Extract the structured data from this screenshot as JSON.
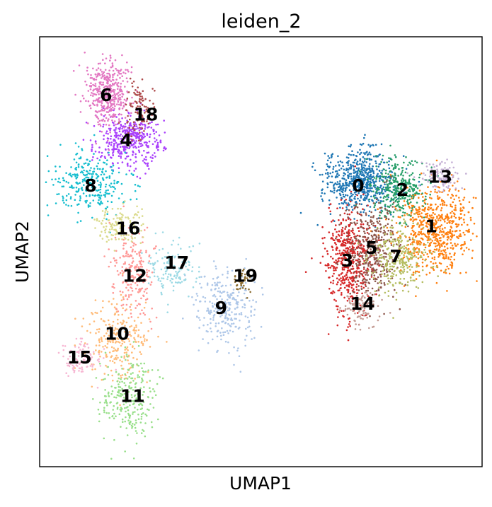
{
  "chart_data": {
    "type": "scatter",
    "title": "leiden_2",
    "xlabel": "UMAP1",
    "ylabel": "UMAP2",
    "xlim": [
      0,
      100
    ],
    "ylim": [
      0,
      100
    ],
    "grid": false,
    "legend": "on data",
    "ticks": "none",
    "clusters": [
      {
        "label": "0",
        "color": "#1f77b4",
        "x": 72.5,
        "y": 66.5,
        "sx": 4.0,
        "sy": 3.6,
        "n": 620
      },
      {
        "label": "1",
        "color": "#ff7f0e",
        "x": 89.5,
        "y": 55.0,
        "sx": 4.2,
        "sy": 5.2,
        "n": 650
      },
      {
        "label": "2",
        "color": "#279e68",
        "x": 81.0,
        "y": 65.0,
        "sx": 3.0,
        "sy": 3.4,
        "n": 330
      },
      {
        "label": "3",
        "color": "#d62728",
        "x": 70.0,
        "y": 48.0,
        "sx": 2.5,
        "sy": 6.2,
        "n": 520
      },
      {
        "label": "4",
        "color": "#aa40fc",
        "x": 20.0,
        "y": 76.0,
        "sx": 3.6,
        "sy": 3.0,
        "n": 430
      },
      {
        "label": "5",
        "color": "#8c564b",
        "x": 75.0,
        "y": 49.5,
        "sx": 2.8,
        "sy": 5.4,
        "n": 380
      },
      {
        "label": "6",
        "color": "#e377c2",
        "x": 15.5,
        "y": 86.5,
        "sx": 2.4,
        "sy": 4.0,
        "n": 400
      },
      {
        "label": "7",
        "color": "#b5bd61",
        "x": 81.0,
        "y": 48.5,
        "sx": 3.2,
        "sy": 4.2,
        "n": 280
      },
      {
        "label": "8",
        "color": "#17becf",
        "x": 11.0,
        "y": 66.0,
        "sx": 4.4,
        "sy": 3.4,
        "n": 300
      },
      {
        "label": "9",
        "color": "#aec7e8",
        "x": 42.0,
        "y": 37.0,
        "sx": 3.4,
        "sy": 4.8,
        "n": 280
      },
      {
        "label": "10",
        "color": "#ffbb78",
        "x": 18.0,
        "y": 30.0,
        "sx": 3.5,
        "sy": 5.0,
        "n": 260
      },
      {
        "label": "11",
        "color": "#98df8a",
        "x": 20.0,
        "y": 16.0,
        "sx": 3.2,
        "sy": 5.0,
        "n": 260
      },
      {
        "label": "12",
        "color": "#ff9896",
        "x": 21.0,
        "y": 45.0,
        "sx": 2.4,
        "sy": 5.0,
        "n": 220
      },
      {
        "label": "13",
        "color": "#c5b0d5",
        "x": 90.5,
        "y": 67.5,
        "sx": 2.4,
        "sy": 1.6,
        "n": 110
      },
      {
        "label": "14",
        "color": "#c49c94",
        "x": 72.5,
        "y": 37.0,
        "sx": 1.8,
        "sy": 2.2,
        "n": 100
      },
      {
        "label": "15",
        "color": "#f7b6d2",
        "x": 9.0,
        "y": 25.0,
        "sx": 2.2,
        "sy": 2.6,
        "n": 100
      },
      {
        "label": "16",
        "color": "#dbdb8d",
        "x": 18.0,
        "y": 56.0,
        "sx": 2.6,
        "sy": 2.4,
        "n": 130
      },
      {
        "label": "17",
        "color": "#9edae5",
        "x": 30.0,
        "y": 45.5,
        "sx": 2.8,
        "sy": 3.2,
        "n": 140
      },
      {
        "label": "18",
        "color": "#ad494a",
        "x": 22.5,
        "y": 83.5,
        "sx": 1.6,
        "sy": 3.2,
        "n": 100
      },
      {
        "label": "19",
        "color": "#8c6d31",
        "x": 46.0,
        "y": 43.0,
        "sx": 1.0,
        "sy": 1.6,
        "n": 40
      }
    ],
    "label_positions": [
      {
        "label": "0",
        "x": 72.0,
        "y": 65.5
      },
      {
        "label": "1",
        "x": 88.5,
        "y": 56.0
      },
      {
        "label": "2",
        "x": 82.0,
        "y": 64.5
      },
      {
        "label": "3",
        "x": 69.5,
        "y": 48.0
      },
      {
        "label": "4",
        "x": 19.5,
        "y": 76.0
      },
      {
        "label": "5",
        "x": 75.0,
        "y": 51.0
      },
      {
        "label": "6",
        "x": 15.0,
        "y": 86.5
      },
      {
        "label": "7",
        "x": 80.5,
        "y": 49.0
      },
      {
        "label": "8",
        "x": 11.5,
        "y": 65.5
      },
      {
        "label": "9",
        "x": 41.0,
        "y": 37.0
      },
      {
        "label": "10",
        "x": 17.5,
        "y": 31.0
      },
      {
        "label": "11",
        "x": 21.0,
        "y": 16.5
      },
      {
        "label": "12",
        "x": 21.5,
        "y": 44.5
      },
      {
        "label": "13",
        "x": 90.5,
        "y": 67.5
      },
      {
        "label": "14",
        "x": 73.0,
        "y": 38.0
      },
      {
        "label": "15",
        "x": 9.0,
        "y": 25.5
      },
      {
        "label": "16",
        "x": 20.0,
        "y": 55.5
      },
      {
        "label": "17",
        "x": 31.0,
        "y": 47.5
      },
      {
        "label": "18",
        "x": 24.0,
        "y": 82.0
      },
      {
        "label": "19",
        "x": 46.5,
        "y": 44.5
      }
    ]
  }
}
